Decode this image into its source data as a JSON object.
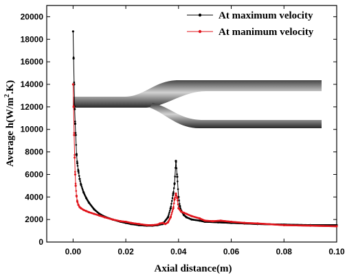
{
  "chart_data": {
    "type": "line",
    "xlabel": "Axial distance(m)",
    "ylabel_parts": [
      "Average h(W/m",
      "2",
      ".K)"
    ],
    "xlim": [
      -0.01,
      0.1
    ],
    "ylim": [
      0,
      21000
    ],
    "x_ticks": [
      0.0,
      0.02,
      0.04,
      0.06,
      0.08,
      0.1
    ],
    "x_tick_labels": [
      "0.00",
      "0.02",
      "0.04",
      "0.06",
      "0.08",
      "0.10"
    ],
    "y_ticks": [
      0,
      2000,
      4000,
      6000,
      8000,
      10000,
      12000,
      14000,
      16000,
      18000,
      20000
    ],
    "y_tick_labels": [
      "0",
      "2000",
      "4000",
      "6000",
      "8000",
      "10000",
      "12000",
      "14000",
      "16000",
      "18000",
      "20000"
    ],
    "legend_position": "top-right",
    "series": [
      {
        "name": "At maximum velocity",
        "color": "#000000",
        "x": [
          0.0,
          0.0002,
          0.0004,
          0.0006,
          0.0008,
          0.001,
          0.0013,
          0.0016,
          0.002,
          0.0025,
          0.003,
          0.004,
          0.005,
          0.006,
          0.008,
          0.01,
          0.012,
          0.015,
          0.018,
          0.02,
          0.022,
          0.025,
          0.028,
          0.03,
          0.032,
          0.034,
          0.036,
          0.037,
          0.038,
          0.0385,
          0.039,
          0.0395,
          0.04,
          0.0405,
          0.041,
          0.042,
          0.043,
          0.045,
          0.048,
          0.05,
          0.055,
          0.06,
          0.065,
          0.07,
          0.08,
          0.09,
          0.1
        ],
        "y": [
          18700,
          16300,
          14000,
          11800,
          10500,
          9500,
          7800,
          7000,
          6300,
          5600,
          5100,
          4400,
          3900,
          3500,
          2900,
          2500,
          2250,
          2000,
          1800,
          1700,
          1600,
          1500,
          1450,
          1450,
          1500,
          1600,
          2200,
          3000,
          4300,
          5200,
          7200,
          5800,
          4000,
          3200,
          2800,
          2400,
          2200,
          2000,
          1900,
          1800,
          1750,
          1700,
          1650,
          1600,
          1550,
          1500,
          1500
        ]
      },
      {
        "name": "At manimum velocity",
        "color": "#e0141b",
        "x": [
          0.0,
          0.0002,
          0.0004,
          0.0006,
          0.0008,
          0.001,
          0.0013,
          0.0016,
          0.002,
          0.0025,
          0.003,
          0.004,
          0.005,
          0.006,
          0.008,
          0.01,
          0.012,
          0.015,
          0.018,
          0.02,
          0.022,
          0.025,
          0.028,
          0.03,
          0.032,
          0.033,
          0.034,
          0.035,
          0.036,
          0.037,
          0.038,
          0.0385,
          0.039,
          0.0395,
          0.04,
          0.041,
          0.042,
          0.043,
          0.045,
          0.048,
          0.05,
          0.053,
          0.056,
          0.06,
          0.065,
          0.07,
          0.08,
          0.09,
          0.1
        ],
        "y": [
          14000,
          12000,
          9500,
          7500,
          6000,
          5000,
          4100,
          3600,
          3300,
          3100,
          3000,
          2850,
          2750,
          2650,
          2500,
          2350,
          2200,
          2000,
          1850,
          1800,
          1700,
          1600,
          1500,
          1500,
          1550,
          1650,
          1700,
          1600,
          1750,
          2200,
          3000,
          3800,
          4300,
          3900,
          3000,
          2700,
          2600,
          2500,
          2300,
          2100,
          1900,
          1850,
          1900,
          1800,
          1700,
          1650,
          1500,
          1450,
          1400
        ]
      }
    ]
  }
}
